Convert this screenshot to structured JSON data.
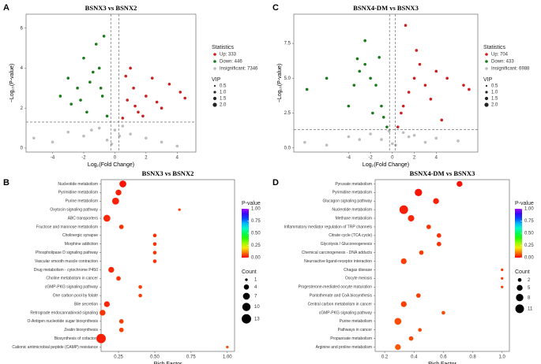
{
  "chart_data": [
    {
      "type": "scatter",
      "panel": "A",
      "title": "BSNX3 vs BSNX2",
      "x_label": "Log₂(Fold Change)",
      "y_label": "−Log₁₀(P-value)",
      "xlim": [
        -5.7,
        5.2
      ],
      "ylim": [
        -0.2,
        6.7
      ],
      "xticks": [
        -4,
        -2,
        0,
        2,
        4
      ],
      "yticks": [
        0,
        2,
        4,
        6
      ],
      "hlines": [
        1.3
      ],
      "vlines": [
        -0.263,
        0.263
      ],
      "legend_title": "Statistics",
      "series": [
        {
          "name": "Up: 333",
          "color": "#cc1f1f",
          "x": [
            0.5,
            0.8,
            1.2,
            1.5,
            2.0,
            2.4,
            3.0,
            3.5,
            4.2,
            4.5,
            1.0,
            0.7,
            1.8,
            2.7,
            1.3
          ],
          "values": [
            1.5,
            2.4,
            3.0,
            1.8,
            2.6,
            3.5,
            2.0,
            3.2,
            2.8,
            2.5,
            4.0,
            3.6,
            1.6,
            2.3,
            2.1
          ]
        },
        {
          "name": "Down: 446",
          "color": "#1b7a1b",
          "x": [
            -0.5,
            -0.8,
            -1.2,
            -1.6,
            -2.0,
            -2.4,
            -2.8,
            -3.5,
            -1.0,
            -1.4,
            -0.7,
            -2.2,
            -1.8,
            -0.9,
            -3.0
          ],
          "values": [
            1.6,
            2.6,
            5.2,
            3.3,
            4.5,
            3.0,
            2.2,
            2.6,
            4.0,
            3.8,
            5.6,
            2.4,
            1.8,
            3.0,
            3.5
          ]
        },
        {
          "name": "Insignificant: 7346",
          "color": "#bdbdbd",
          "x": [
            -5.2,
            -4.0,
            -3.0,
            -2.0,
            -1.0,
            -0.5,
            0,
            0.5,
            1.0,
            2.0,
            3.0,
            4.0,
            -0.2,
            0.3,
            -1.5
          ],
          "values": [
            0.5,
            0.3,
            0.8,
            0.6,
            1.0,
            0.4,
            0.9,
            1.1,
            0.7,
            0.5,
            0.3,
            0.1,
            0.2,
            0.6,
            0.9
          ]
        }
      ],
      "size_legend_title": "VIP",
      "size_ticks": [
        0.5,
        {
          "value": 1,
          "label": "1.0"
        },
        1.5,
        {
          "value": 2,
          "label": "2.0"
        }
      ]
    },
    {
      "type": "scatter",
      "panel": "C",
      "title": "BSNX4-DM vs BSNX3",
      "x_label": "Log₂(Fold Change)",
      "y_label": "−Log₁₀(P-value)",
      "xlim": [
        -9,
        7.8
      ],
      "ylim": [
        -0.3,
        9.6
      ],
      "xticks": [
        -4,
        -2,
        0,
        2,
        4
      ],
      "yticks": [
        {
          "value": 0,
          "label": "0.0"
        },
        2.5,
        {
          "value": 5,
          "label": "5.0"
        },
        7.5
      ],
      "hlines": [
        1.3
      ],
      "vlines": [
        -0.263,
        0.263
      ],
      "legend_title": "Statistics",
      "series": [
        {
          "name": "Up: 704",
          "color": "#cc1f1f",
          "x": [
            0.5,
            1.0,
            1.5,
            2.0,
            2.5,
            3.0,
            3.5,
            4.0,
            5.0,
            6.5,
            7.0,
            1.2,
            2.2,
            0.8,
            4.5
          ],
          "values": [
            1.5,
            3.0,
            4.0,
            5.0,
            6.0,
            4.5,
            3.5,
            5.5,
            5.0,
            4.5,
            4.2,
            8.8,
            7.0,
            2.5,
            2.0
          ]
        },
        {
          "name": "Down: 433",
          "color": "#1b7a1b",
          "x": [
            -0.5,
            -1.0,
            -1.5,
            -2.0,
            -2.5,
            -3.0,
            -3.5,
            -4.0,
            -7.8,
            -2.5,
            -1.2,
            -1.8,
            -3.2,
            -0.8,
            -6.0
          ],
          "values": [
            1.5,
            3.0,
            4.5,
            5.0,
            6.0,
            5.5,
            4.5,
            3.0,
            4.2,
            7.7,
            6.5,
            2.5,
            6.4,
            2.2,
            5.0
          ]
        },
        {
          "name": "Insignificant: 6988",
          "color": "#bdbdbd",
          "x": [
            -8,
            -6,
            -4,
            -2,
            -1,
            0,
            1,
            2,
            4,
            6,
            -0.3,
            0.3,
            3,
            -3,
            1.5
          ],
          "values": [
            0.4,
            0.2,
            0.8,
            1.0,
            0.6,
            0.3,
            1.1,
            0.9,
            0.7,
            0.5,
            1.2,
            0.2,
            0.4,
            0.6,
            0.8
          ]
        }
      ],
      "size_legend_title": "VIP",
      "size_ticks": [
        0.5,
        {
          "value": 1,
          "label": "1.0"
        },
        1.5,
        {
          "value": 2,
          "label": "2.0"
        }
      ]
    },
    {
      "type": "bubble",
      "panel": "B",
      "title": "BSNX3 vs BSNX2",
      "x_label": "Rich Factor",
      "categories": [
        "Nucleotide metabolism",
        "Pyrimidine metabolism",
        "Purine metabolism",
        "Oxytocin signaling pathway",
        "ABC transporters",
        "Fructose and mannose metabolism",
        "Cholinergic synapse",
        "Morphine addiction",
        "Phospholipase D signaling pathway",
        "Vascular smooth muscle contraction",
        "Drug metabolism - cytochrome P450",
        "Choline metabolism in cancer",
        "cGMP-PKG signaling pathway",
        "One carbon pool by folate",
        "Bile secretion",
        "Retrograde endocannabinoid signaling",
        "O-Antigen nucleotide sugar biosynthesis",
        "Zeatin biosynthesis",
        "Biosynthesis of cofactors",
        "Cationic antimicrobial peptide (CAMP) resistance"
      ],
      "values": [
        0.28,
        0.25,
        0.23,
        0.67,
        0.17,
        0.27,
        0.5,
        0.5,
        0.5,
        0.5,
        0.2,
        0.25,
        0.4,
        0.4,
        0.17,
        0.14,
        0.27,
        0.27,
        0.13,
        1.0
      ],
      "sizes": [
        7,
        5,
        7,
        1,
        7,
        3,
        2,
        2,
        2,
        2,
        5,
        3,
        2,
        2,
        5,
        5,
        3,
        3,
        13,
        1
      ],
      "pvalues": [
        0.01,
        0.02,
        0.02,
        0.05,
        0.03,
        0.04,
        0.04,
        0.04,
        0.04,
        0.04,
        0.03,
        0.04,
        0.05,
        0.05,
        0.03,
        0.04,
        0.05,
        0.05,
        0.02,
        0.06
      ],
      "xlim": [
        0.13,
        1.05
      ],
      "xticks": [
        0.25,
        {
          "value": 0.5,
          "label": "0.50"
        },
        0.75,
        {
          "value": 1,
          "label": "1.00"
        }
      ],
      "color_legend_title": "P-value",
      "color_ticks": [
        {
          "value": 0,
          "label": "0.00"
        },
        0.25,
        {
          "value": 0.5,
          "label": "0.50"
        },
        0.75,
        {
          "value": 1,
          "label": "1.00"
        }
      ],
      "size_legend_title": "Count",
      "size_ticks": [
        1,
        4,
        7,
        10,
        13
      ]
    },
    {
      "type": "bubble",
      "panel": "D",
      "title": "BSNX4-DM vs BSNX3",
      "x_label": "Rich Factor",
      "categories": [
        "Pyruvate metabolism",
        "Pyrimidine metabolism",
        "Glucagon signaling pathway",
        "Nucleotide metabolism",
        "Methane metabolism",
        "Inflammatory mediator regulation of TRP channels",
        "Citrate cycle (TCA cycle)",
        "Glycolysis / Gluconeogenesis",
        "Chemical carcinogenesis - DNA adducts",
        "Neuroactive ligand-receptor interaction",
        "Chagas disease",
        "Oocyte meiosis",
        "Progesterone-mediated oocyte maturation",
        "Pantothenate and CoA biosynthesis",
        "Central carbon metabolism in cancer",
        "cGMP-PKG signaling pathway",
        "Purine metabolism",
        "Pathways in cancer",
        "Propanoate metabolism",
        "Arginine and proline metabolism"
      ],
      "values": [
        0.71,
        0.43,
        0.55,
        0.33,
        0.38,
        0.5,
        0.57,
        0.57,
        0.45,
        0.33,
        1.0,
        1.0,
        1.0,
        0.43,
        0.33,
        0.6,
        0.29,
        0.44,
        0.38,
        0.29
      ],
      "sizes": [
        5,
        8,
        5,
        11,
        6,
        3,
        3,
        3,
        3,
        5,
        1,
        1,
        1,
        3,
        5,
        2,
        7,
        2,
        3,
        5
      ],
      "pvalues": [
        0.01,
        0.01,
        0.02,
        0.02,
        0.03,
        0.04,
        0.04,
        0.04,
        0.05,
        0.05,
        0.05,
        0.05,
        0.05,
        0.05,
        0.05,
        0.06,
        0.06,
        0.06,
        0.06,
        0.07
      ],
      "xlim": [
        0.135,
        1.05
      ],
      "xticks": [
        0.2,
        0.4,
        0.6,
        0.8,
        {
          "value": 1,
          "label": "1.0"
        }
      ],
      "color_legend_title": "P-value",
      "color_ticks": [
        {
          "value": 0,
          "label": "0.00"
        },
        0.25,
        {
          "value": 0.5,
          "label": "0.50"
        },
        0.75,
        {
          "value": 1,
          "label": "1.00"
        }
      ],
      "size_legend_title": "Count",
      "size_ticks": [
        2,
        5,
        8,
        11
      ]
    }
  ]
}
